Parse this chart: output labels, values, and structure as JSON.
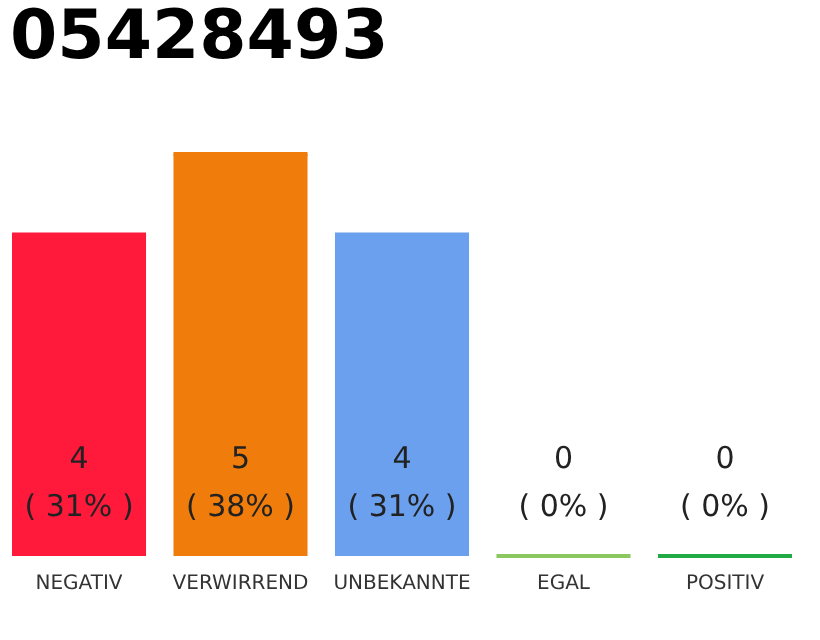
{
  "chart_data": {
    "type": "bar",
    "title": "05428493",
    "categories": [
      "NEGATIV",
      "VERWIRREND",
      "UNBEKANNTE",
      "EGAL",
      "POSITIV"
    ],
    "values": [
      4,
      5,
      4,
      0,
      0
    ],
    "colors": [
      "#ff1a3c",
      "#f07c0c",
      "#6aa0ee",
      "#8bc960",
      "#22aa44"
    ],
    "value_labels": [
      "4\n( 31% )",
      "5\n( 38% )",
      "4\n( 31% )",
      "0\n( 0% )",
      "0\n( 0% )"
    ],
    "tick_labels": "x",
    "grid": false
  }
}
